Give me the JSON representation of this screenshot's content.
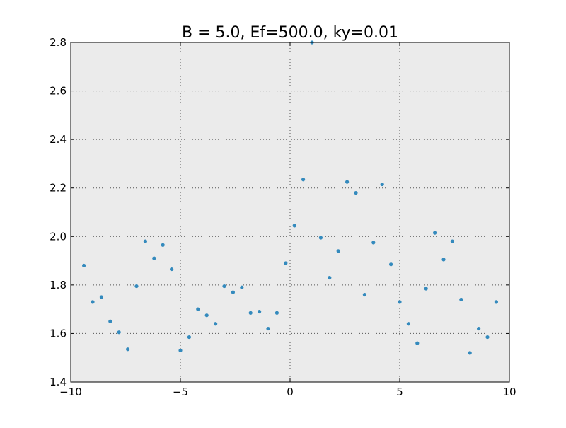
{
  "chart_data": {
    "type": "scatter",
    "title": "B = 5.0, Ef=500.0, ky=0.01",
    "xlabel": "",
    "ylabel": "",
    "xlim": [
      -10,
      10
    ],
    "ylim": [
      1.4,
      2.8
    ],
    "xticks": [
      -10,
      -5,
      0,
      5,
      10
    ],
    "xtick_labels": [
      "−10",
      "−5",
      "0",
      "5",
      "10"
    ],
    "yticks": [
      1.4,
      1.6,
      1.8,
      2.0,
      2.2,
      2.4,
      2.6,
      2.8
    ],
    "ytick_labels": [
      "1.4",
      "1.6",
      "1.8",
      "2.0",
      "2.2",
      "2.4",
      "2.6",
      "2.8"
    ],
    "grid": true,
    "legend": "none",
    "colors": {
      "background": "#ebebeb",
      "point": "#348abd",
      "grid": "#555555"
    },
    "series": [
      {
        "x": [
          -9.4,
          -9.0,
          -8.6,
          -8.2,
          -7.8,
          -7.4,
          -7.0,
          -6.6,
          -6.2,
          -5.8,
          -5.4,
          -5.0,
          -4.6,
          -4.2,
          -3.8,
          -3.4,
          -3.0,
          -2.6,
          -2.2,
          -1.8,
          -1.4,
          -1.0,
          -0.6,
          -0.2,
          0.2,
          0.6,
          1.0,
          1.4,
          1.8,
          2.2,
          2.6,
          3.0,
          3.4,
          3.8,
          4.2,
          4.6,
          5.0,
          5.4,
          5.8,
          6.2,
          6.6,
          7.0,
          7.4,
          7.8,
          8.2,
          8.6,
          9.0,
          9.4
        ],
        "y": [
          1.88,
          1.73,
          1.75,
          1.65,
          1.605,
          1.535,
          1.795,
          1.98,
          1.91,
          1.965,
          1.865,
          1.53,
          1.585,
          1.7,
          1.675,
          1.64,
          1.795,
          1.77,
          1.79,
          1.685,
          1.69,
          1.62,
          1.685,
          1.89,
          2.045,
          2.235,
          2.8,
          1.995,
          1.83,
          1.94,
          2.225,
          2.18,
          1.76,
          1.975,
          2.215,
          1.885,
          1.73,
          1.64,
          1.56,
          1.785,
          2.015,
          1.905,
          1.98,
          1.74,
          1.52,
          1.62,
          1.585,
          1.73
        ]
      }
    ]
  }
}
